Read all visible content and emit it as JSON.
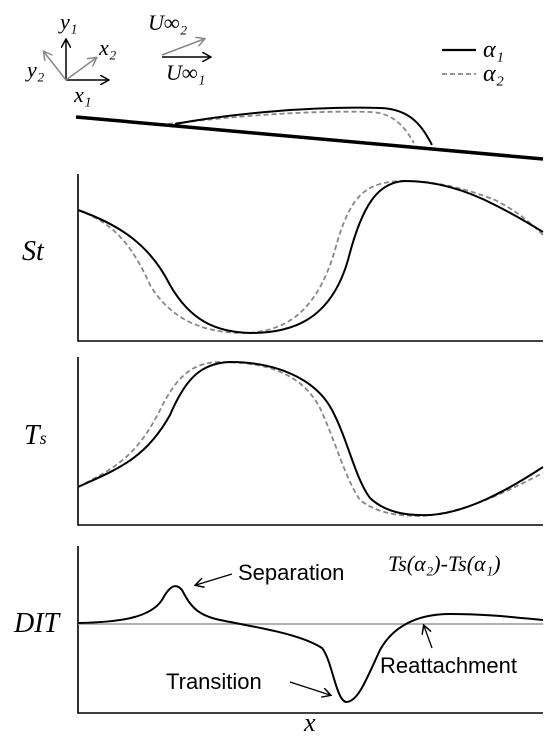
{
  "coordinate_system": {
    "y1": "y₁",
    "y2": "y₂",
    "x1": "x₁",
    "x2": "x₂",
    "u_inf_2": "U∞₂",
    "u_inf_1": "U∞₁"
  },
  "legend": {
    "items": [
      {
        "label": "α₁",
        "style": "solid",
        "color": "#000000"
      },
      {
        "label": "α₂",
        "style": "dashed",
        "color": "#888888"
      }
    ]
  },
  "panels": {
    "st": {
      "ylabel": "St"
    },
    "ts": {
      "ylabel": "Ts",
      "ylabel_main": "T",
      "ylabel_sub": "s"
    },
    "dit": {
      "ylabel": "DIT",
      "expression": "Ts(α₂)-Ts(α₁)"
    }
  },
  "annotations": {
    "separation": "Separation",
    "transition": "Transition",
    "reattachment": "Reattachment"
  },
  "xaxis": {
    "label": "x"
  },
  "colors": {
    "alpha1": "#000000",
    "alpha2": "#888888",
    "baseline": "#999999"
  }
}
